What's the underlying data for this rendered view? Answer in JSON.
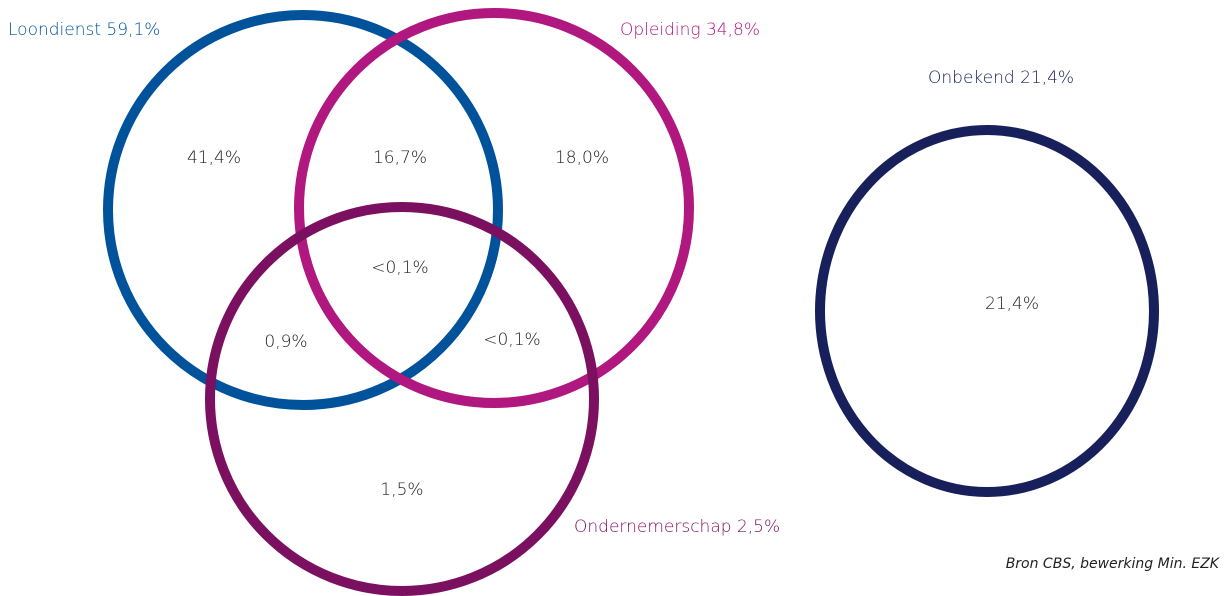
{
  "sets": [
    {
      "label": "Loondienst 59,1%"
    },
    {
      "label": "Opleiding 34,8%"
    },
    {
      "label": "Ondernemerschap 2,5%"
    },
    {
      "label": "Onbekend 21,4%"
    }
  ],
  "regions": [
    {
      "label": "41,4%"
    },
    {
      "label": "16,7%"
    },
    {
      "label": "18,0%"
    },
    {
      "label": "<0,1%"
    },
    {
      "label": "0,9%"
    },
    {
      "label": "<0,1%"
    },
    {
      "label": "1,5%"
    },
    {
      "label": "21,4%"
    }
  ],
  "source": "Bron CBS, bewerking Min. EZK"
}
